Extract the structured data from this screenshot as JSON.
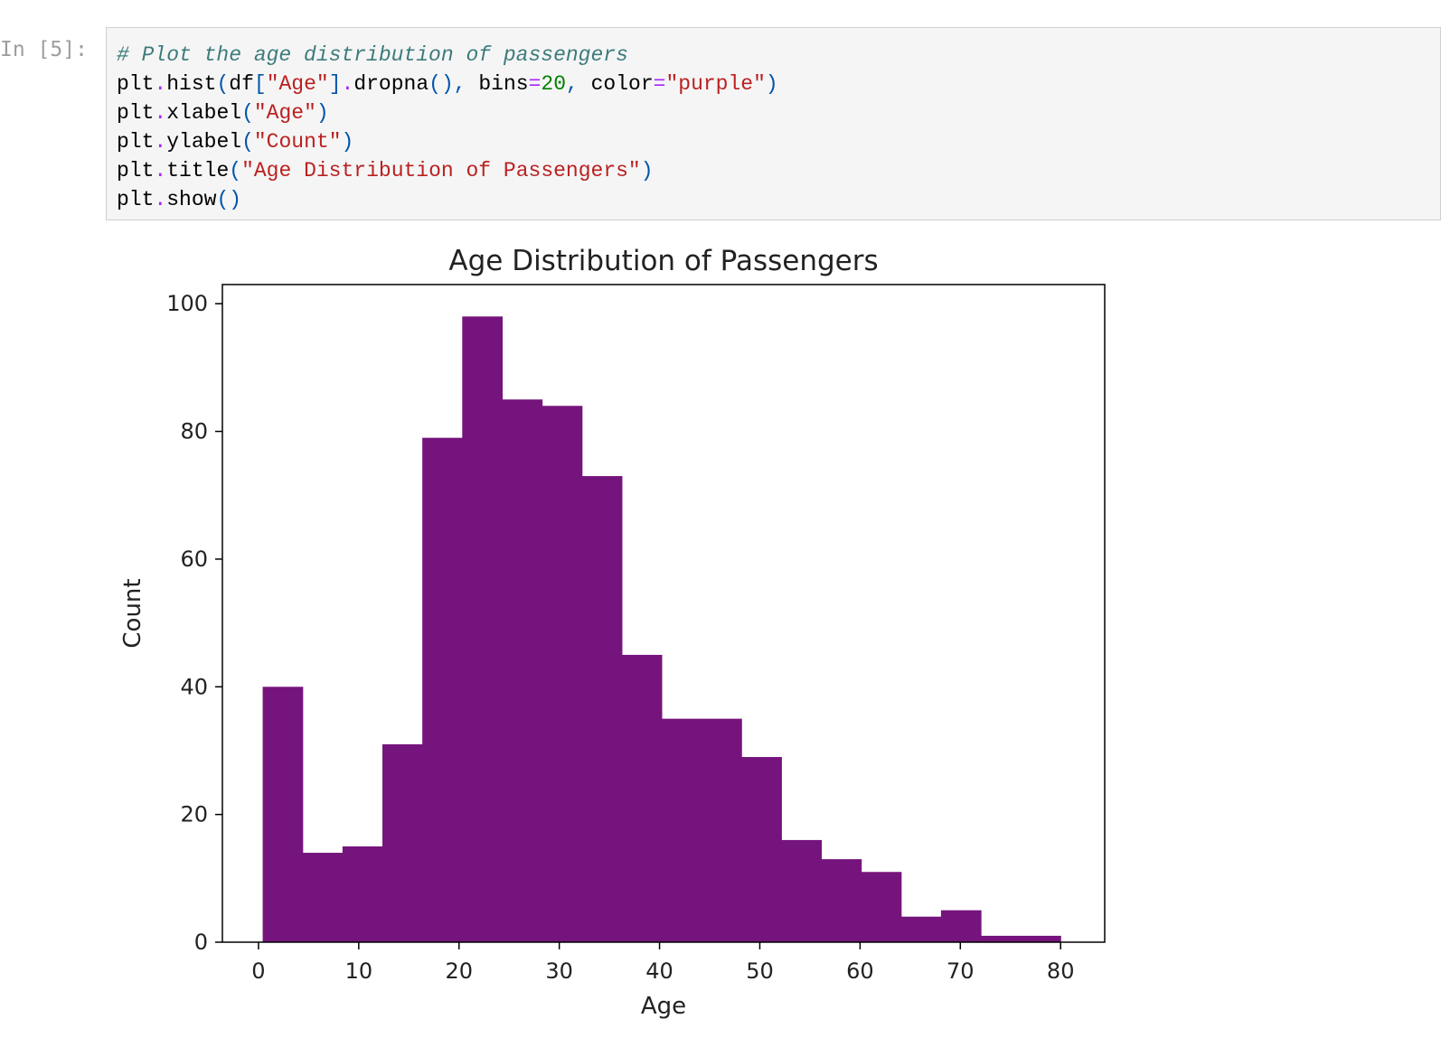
{
  "cell": {
    "prompt": "In [5]:",
    "code_lines": [
      [
        {
          "t": "# Plot the age distribution of passengers",
          "c": "comment"
        }
      ],
      [
        {
          "t": "plt",
          "c": ""
        },
        {
          "t": ".",
          "c": "op"
        },
        {
          "t": "hist",
          "c": ""
        },
        {
          "t": "(",
          "c": "punc"
        },
        {
          "t": "df",
          "c": ""
        },
        {
          "t": "[",
          "c": "punc"
        },
        {
          "t": "\"Age\"",
          "c": "string"
        },
        {
          "t": "]",
          "c": "punc"
        },
        {
          "t": ".",
          "c": "op"
        },
        {
          "t": "dropna",
          "c": ""
        },
        {
          "t": "(),",
          "c": "punc"
        },
        {
          "t": " bins",
          "c": ""
        },
        {
          "t": "=",
          "c": "op"
        },
        {
          "t": "20",
          "c": "number"
        },
        {
          "t": ",",
          "c": "punc"
        },
        {
          "t": " color",
          "c": ""
        },
        {
          "t": "=",
          "c": "op"
        },
        {
          "t": "\"purple\"",
          "c": "string"
        },
        {
          "t": ")",
          "c": "punc"
        }
      ],
      [
        {
          "t": "plt",
          "c": ""
        },
        {
          "t": ".",
          "c": "op"
        },
        {
          "t": "xlabel",
          "c": ""
        },
        {
          "t": "(",
          "c": "punc"
        },
        {
          "t": "\"Age\"",
          "c": "string"
        },
        {
          "t": ")",
          "c": "punc"
        }
      ],
      [
        {
          "t": "plt",
          "c": ""
        },
        {
          "t": ".",
          "c": "op"
        },
        {
          "t": "ylabel",
          "c": ""
        },
        {
          "t": "(",
          "c": "punc"
        },
        {
          "t": "\"Count\"",
          "c": "string"
        },
        {
          "t": ")",
          "c": "punc"
        }
      ],
      [
        {
          "t": "plt",
          "c": ""
        },
        {
          "t": ".",
          "c": "op"
        },
        {
          "t": "title",
          "c": ""
        },
        {
          "t": "(",
          "c": "punc"
        },
        {
          "t": "\"Age Distribution of Passengers\"",
          "c": "string"
        },
        {
          "t": ")",
          "c": "punc"
        }
      ],
      [
        {
          "t": "plt",
          "c": ""
        },
        {
          "t": ".",
          "c": "op"
        },
        {
          "t": "show",
          "c": ""
        },
        {
          "t": "()",
          "c": "punc"
        }
      ]
    ]
  },
  "chart_data": {
    "type": "bar",
    "title": "Age Distribution of Passengers",
    "xlabel": "Age",
    "ylabel": "Count",
    "bar_color": "#75147c",
    "xlim": [
      -3.6,
      84.4
    ],
    "ylim": [
      0,
      103
    ],
    "x_ticks": [
      0,
      10,
      20,
      30,
      40,
      50,
      60,
      70,
      80
    ],
    "y_ticks": [
      0,
      20,
      40,
      60,
      80,
      100
    ],
    "bin_edges": [
      0.42,
      4.4,
      8.38,
      12.36,
      16.34,
      20.32,
      24.3,
      28.28,
      32.26,
      36.24,
      40.21,
      44.19,
      48.17,
      52.15,
      56.13,
      60.11,
      64.09,
      68.07,
      72.05,
      76.03,
      80.0
    ],
    "values": [
      40,
      14,
      15,
      31,
      79,
      98,
      85,
      84,
      73,
      45,
      35,
      35,
      29,
      16,
      13,
      11,
      4,
      5,
      1,
      1
    ]
  }
}
